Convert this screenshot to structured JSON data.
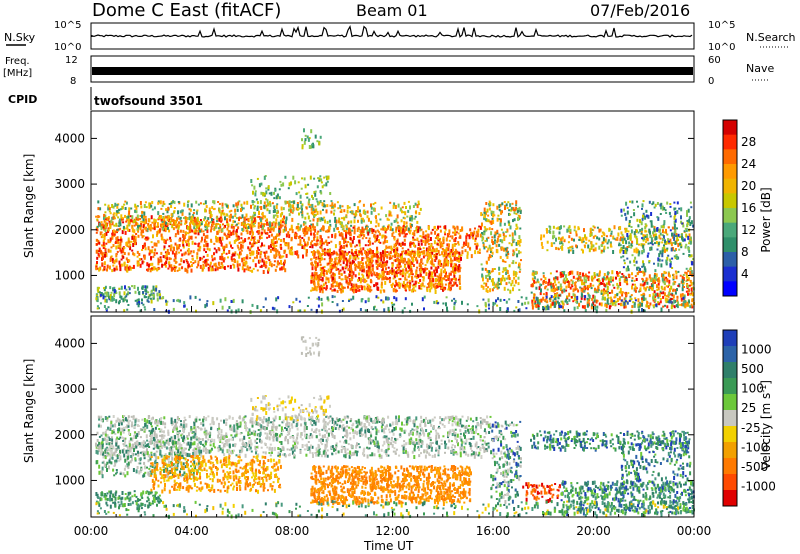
{
  "header": {
    "title": "Dome C East (fitACF)",
    "beam": "Beam 01",
    "date": "07/Feb/2016"
  },
  "panels": {
    "noise": {
      "left_label": "N.Sky",
      "right_label": "N.Search",
      "ticks_left": [
        "10^5",
        "10^0"
      ],
      "ticks_right": [
        "10^5",
        "10^0"
      ]
    },
    "freq": {
      "left_label_top": "Freq.",
      "left_label_bottom": "[MHz]",
      "ticks_left": [
        "12",
        "8"
      ],
      "right_label": "Nave",
      "ticks_right": [
        "60",
        "0"
      ]
    },
    "cpid": {
      "label": "CPID",
      "value": "twofsound 3501"
    }
  },
  "chart_data": [
    {
      "type": "heatmap",
      "name": "power",
      "ylabel": "Slant Range [km]",
      "ylim": [
        200,
        4600
      ],
      "yticks": [
        1000,
        2000,
        3000,
        4000
      ],
      "xlim_hours": [
        0,
        24
      ],
      "colorbar": {
        "label": "Power [dB]",
        "ticks": [
          "28",
          "24",
          "20",
          "16",
          "12",
          "8",
          "4"
        ],
        "colors": [
          "#d40000",
          "#ff2a00",
          "#ff6a00",
          "#ff9a00",
          "#f0b400",
          "#c8c800",
          "#8cc850",
          "#4aa87a",
          "#2f8f6a",
          "#2b5fa8",
          "#1a2fd0",
          "#0000ff"
        ]
      }
    },
    {
      "type": "heatmap",
      "name": "velocity",
      "ylabel": "Slant Range [km]",
      "ylim": [
        200,
        4600
      ],
      "yticks": [
        1000,
        2000,
        3000,
        4000
      ],
      "xlim_hours": [
        0,
        24
      ],
      "colorbar": {
        "label": "Velocity",
        "ticks": [
          "1000",
          "500",
          "100",
          "25",
          "-25",
          "-100",
          "-500",
          "-1000"
        ],
        "colors": [
          "#1f3fb8",
          "#2c63a8",
          "#2f7f6a",
          "#3a9a55",
          "#6cc83a",
          "#c8c8c0",
          "#f2d000",
          "#f2a000",
          "#ff7a00",
          "#ff4a00",
          "#e00000"
        ]
      }
    }
  ],
  "xaxis": {
    "label": "Time UT",
    "ticks": [
      "00:00",
      "04:00",
      "08:00",
      "12:00",
      "16:00",
      "20:00",
      "00:00"
    ]
  }
}
